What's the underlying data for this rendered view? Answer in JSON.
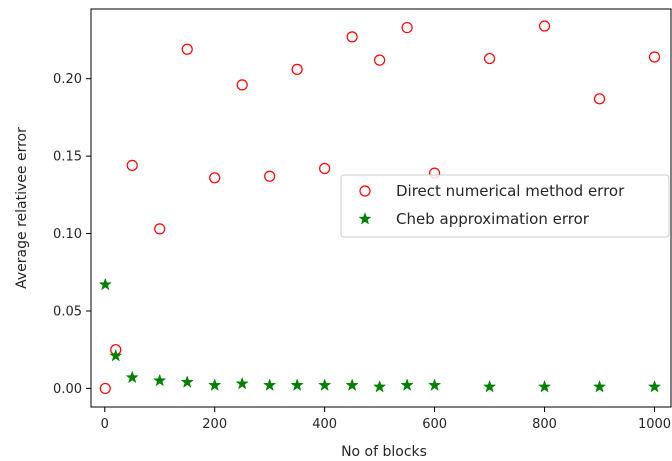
{
  "chart_data": {
    "type": "scatter",
    "title": "",
    "xlabel": "No of blocks",
    "ylabel": "Average relativee error",
    "xlim": [
      -25,
      1030
    ],
    "ylim": [
      -0.012,
      0.245
    ],
    "xticks": [
      0,
      200,
      400,
      600,
      800,
      1000
    ],
    "xtick_labels": [
      "0",
      "200",
      "400",
      "600",
      "800",
      "1000"
    ],
    "yticks": [
      0.0,
      0.05,
      0.1,
      0.15,
      0.2
    ],
    "ytick_labels": [
      "0.00",
      "0.05",
      "0.10",
      "0.15",
      "0.20"
    ],
    "grid": false,
    "legend_position": "center-right",
    "series": [
      {
        "name": "Direct numerical method error",
        "marker": "hollow-circle",
        "color": "#ff0000",
        "x": [
          1,
          20,
          50,
          100,
          150,
          200,
          250,
          300,
          350,
          400,
          450,
          500,
          550,
          600,
          700,
          800,
          900,
          1000
        ],
        "y": [
          0.0,
          0.025,
          0.144,
          0.103,
          0.219,
          0.136,
          0.196,
          0.137,
          0.206,
          0.142,
          0.227,
          0.212,
          0.233,
          0.139,
          0.213,
          0.234,
          0.187,
          0.214
        ]
      },
      {
        "name": "Cheb approximation error",
        "marker": "star",
        "color": "#008000",
        "x": [
          1,
          20,
          50,
          100,
          150,
          200,
          250,
          300,
          350,
          400,
          450,
          500,
          550,
          600,
          700,
          800,
          900,
          1000
        ],
        "y": [
          0.067,
          0.021,
          0.007,
          0.005,
          0.004,
          0.002,
          0.003,
          0.002,
          0.002,
          0.002,
          0.002,
          0.001,
          0.002,
          0.002,
          0.001,
          0.001,
          0.001,
          0.001
        ]
      }
    ]
  }
}
